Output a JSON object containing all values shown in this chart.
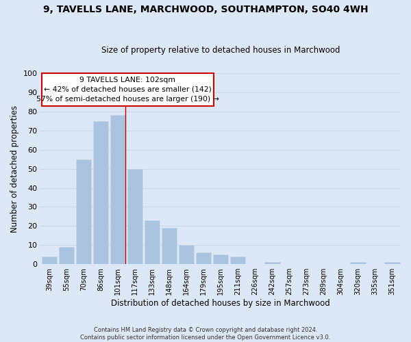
{
  "title": "9, TAVELLS LANE, MARCHWOOD, SOUTHAMPTON, SO40 4WH",
  "subtitle": "Size of property relative to detached houses in Marchwood",
  "xlabel": "Distribution of detached houses by size in Marchwood",
  "ylabel": "Number of detached properties",
  "bar_labels": [
    "39sqm",
    "55sqm",
    "70sqm",
    "86sqm",
    "101sqm",
    "117sqm",
    "133sqm",
    "148sqm",
    "164sqm",
    "179sqm",
    "195sqm",
    "211sqm",
    "226sqm",
    "242sqm",
    "257sqm",
    "273sqm",
    "289sqm",
    "304sqm",
    "320sqm",
    "335sqm",
    "351sqm"
  ],
  "bar_values": [
    4,
    9,
    55,
    75,
    78,
    50,
    23,
    19,
    10,
    6,
    5,
    4,
    0,
    1,
    0,
    0,
    0,
    0,
    1,
    0,
    1
  ],
  "bar_color": "#aac4e0",
  "bar_edge_color": "#c8d8ea",
  "ylim": [
    0,
    100
  ],
  "yticks": [
    0,
    10,
    20,
    30,
    40,
    50,
    60,
    70,
    80,
    90,
    100
  ],
  "annotation_title": "9 TAVELLS LANE: 102sqm",
  "annotation_line1": "← 42% of detached houses are smaller (142)",
  "annotation_line2": "57% of semi-detached houses are larger (190) →",
  "annotation_box_color": "#ffffff",
  "annotation_box_edge": "#cc0000",
  "property_bar_index": 4,
  "property_line_color": "#cc0000",
  "grid_color": "#c8d8ea",
  "background_color": "#dce8f5",
  "footer_line1": "Contains HM Land Registry data © Crown copyright and database right 2024.",
  "footer_line2": "Contains public sector information licensed under the Open Government Licence v3.0."
}
